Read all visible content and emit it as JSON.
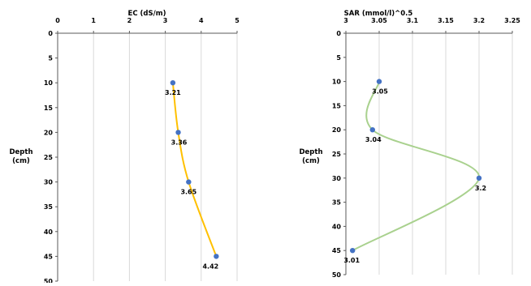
{
  "chart_data": [
    {
      "type": "scatter",
      "title": "EC (dS/m)",
      "ylabel": "Depth (cm)",
      "xlim": [
        0,
        5
      ],
      "ylim": [
        0,
        50
      ],
      "x_ticks": [
        "0",
        "1",
        "2",
        "3",
        "4",
        "5"
      ],
      "y_ticks": [
        "0",
        "5",
        "10",
        "15",
        "20",
        "25",
        "30",
        "35",
        "40",
        "45",
        "50"
      ],
      "y_inverted": true,
      "x_axis_position": "top",
      "grid": "vertical",
      "series": [
        {
          "x": [
            3.21,
            3.36,
            3.65,
            4.42
          ],
          "y": [
            10,
            20,
            30,
            45
          ],
          "labels": [
            "3.21",
            "3.36",
            "3.65",
            "4.42"
          ],
          "line_color": "#FFC000",
          "marker_color": "#4472C4",
          "smooth": true
        }
      ]
    },
    {
      "type": "scatter",
      "title": "SAR (mmol/l)^0.5",
      "ylabel": "Depth (cm)",
      "xlim": [
        3,
        3.25
      ],
      "ylim": [
        0,
        50
      ],
      "x_ticks": [
        "3",
        "3.05",
        "3.1",
        "3.15",
        "3.2",
        "3.25"
      ],
      "y_ticks": [
        "0",
        "5",
        "10",
        "15",
        "20",
        "25",
        "30",
        "35",
        "40",
        "45",
        "50"
      ],
      "y_inverted": true,
      "x_axis_position": "top",
      "grid": "vertical",
      "series": [
        {
          "x": [
            3.05,
            3.04,
            3.2,
            3.01
          ],
          "y": [
            10,
            20,
            30,
            45
          ],
          "labels": [
            "3.05",
            "3.04",
            "3.2",
            "3.01"
          ],
          "line_color": "#A9D18E",
          "marker_color": "#4472C4",
          "smooth": true
        }
      ]
    }
  ]
}
